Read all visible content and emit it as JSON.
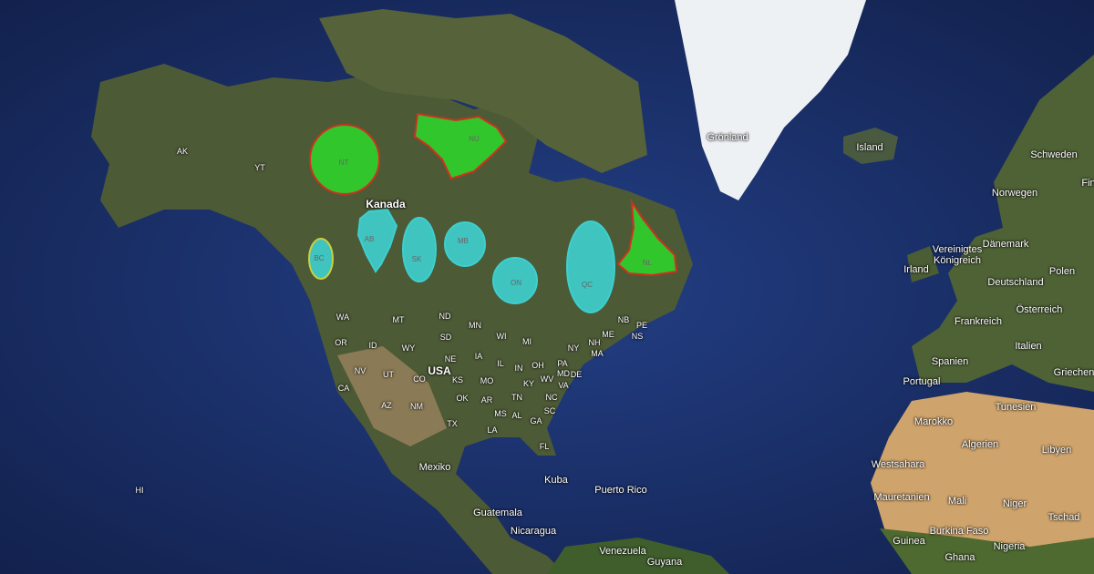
{
  "map": {
    "regions": [
      {
        "label": "NT",
        "color": "#2fd12a"
      },
      {
        "label": "NU",
        "color": "#2fd12a"
      },
      {
        "label": "BC",
        "color": "#3ecfcf"
      },
      {
        "label": "AB",
        "color": "#3ecfcf"
      },
      {
        "label": "SK",
        "color": "#3ecfcf"
      },
      {
        "label": "MB",
        "color": "#3ecfcf"
      },
      {
        "label": "ON",
        "color": "#3ecfcf"
      },
      {
        "label": "QC",
        "color": "#3ecfcf"
      },
      {
        "label": "NL",
        "color": "#2fd12a"
      }
    ],
    "places": [
      "YT",
      "AK",
      "Kanada",
      "WA",
      "MT",
      "ND",
      "MN",
      "OR",
      "ID",
      "SD",
      "WI",
      "MI",
      "ME",
      "NB",
      "PE",
      "NS",
      "WY",
      "NE",
      "IA",
      "NY",
      "NH",
      "MA",
      "NV",
      "UT",
      "USA",
      "CO",
      "KS",
      "IL",
      "IN",
      "OH",
      "PA",
      "MO",
      "KY",
      "WV",
      "MD",
      "DE",
      "VA",
      "CA",
      "AZ",
      "NM",
      "OK",
      "AR",
      "TN",
      "NC",
      "MS",
      "AL",
      "GA",
      "SC",
      "TX",
      "LA",
      "FL",
      "Mexiko",
      "HI",
      "Kuba",
      "Puerto Rico",
      "Guatemala",
      "Nicaragua",
      "Venezuela",
      "Guyana",
      "Grönland",
      "Island",
      "Schweden",
      "Norwegen",
      "Fin",
      "Irland",
      "Vereinigtes Königreich",
      "Dänemark",
      "Polen",
      "Deutschland",
      "Frankreich",
      "Österreich",
      "Italien",
      "Spanien",
      "Portugal",
      "Griechen",
      "Tunesien",
      "Marokko",
      "Algerien",
      "Libyen",
      "Westsahara",
      "Mauretanien",
      "Mali",
      "Niger",
      "Tschad",
      "Burkina Faso",
      "Guinea",
      "Ghana",
      "Nigeria"
    ]
  }
}
